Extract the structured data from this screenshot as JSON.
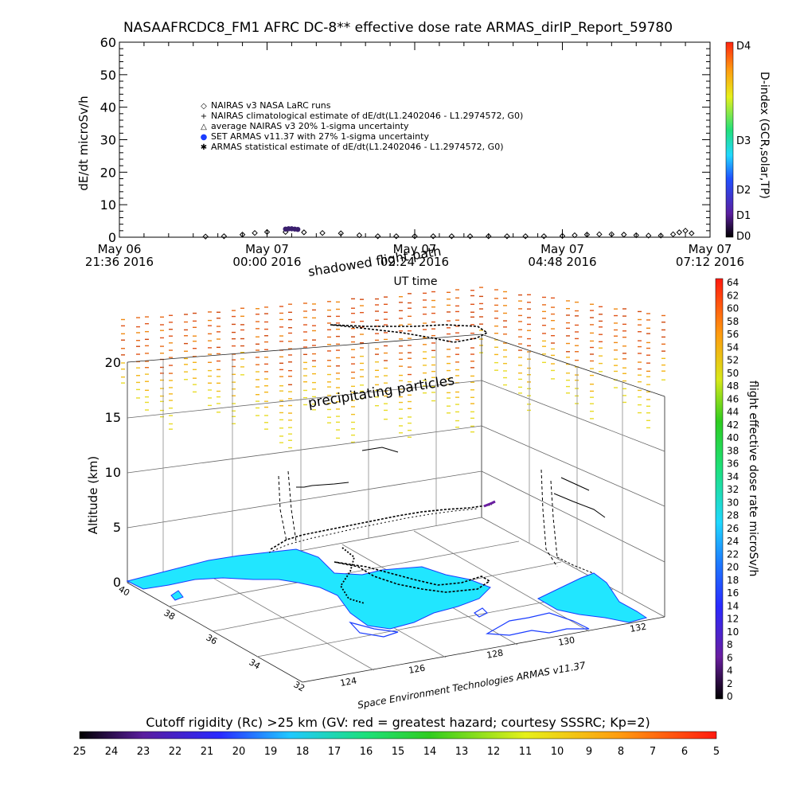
{
  "chart_data": [
    {
      "type": "scatter",
      "title": "NASAAFRCDC8_FM1 AFRC DC-8** effective dose rate ARMAS_dirIP_Report_59780",
      "ylabel": "dE/dt microSv/h",
      "xlabel": "UT time",
      "ylim": [
        0,
        60
      ],
      "yticks": [
        "0",
        "10",
        "20",
        "30",
        "40",
        "50",
        "60"
      ],
      "xticks": [
        {
          "l1": "May 06",
          "l2": "21:36 2016"
        },
        {
          "l1": "May 07",
          "l2": "00:00 2016"
        },
        {
          "l1": "May 07",
          "l2": "02:24 2016"
        },
        {
          "l1": "May 07",
          "l2": "04:48 2016"
        },
        {
          "l1": "May 07",
          "l2": "07:12 2016"
        }
      ],
      "x_hours": [
        -2.4,
        0,
        2.4,
        4.8,
        7.2
      ],
      "legend": [
        {
          "symbol": "◇",
          "label": "NAIRAS v3 NASA LaRC runs"
        },
        {
          "symbol": "+",
          "label": "NAIRAS climatological estimate of dE/dt(L1.2402046 - L1.2974572, G0)"
        },
        {
          "symbol": "△",
          "label": "average NAIRAS v3 20% 1-sigma uncertainty"
        },
        {
          "symbol": "●",
          "label": "SET ARMAS v11.37 with 27% 1-sigma uncertainty"
        },
        {
          "symbol": "✱",
          "label": "ARMAS statistical estimate of dE/dt(L1.2402046 - L1.2974572, G0)"
        }
      ],
      "legend_placement": "upper-left",
      "series": [
        {
          "marker": "diamond",
          "color": "#000000",
          "x": [
            -1.0,
            -0.7,
            -0.4,
            -0.2,
            0.0,
            0.3,
            0.6,
            0.9,
            1.2,
            1.5,
            1.8,
            2.1,
            2.4,
            2.7,
            3.0,
            3.3,
            3.6,
            3.9,
            4.2,
            4.5,
            4.8,
            5.0,
            5.2,
            5.4,
            5.6,
            5.8,
            6.0,
            6.2,
            6.4,
            6.6,
            6.7,
            6.8,
            6.9
          ],
          "y": [
            0.2,
            0.3,
            0.8,
            1.3,
            1.6,
            1.6,
            1.5,
            1.3,
            1.2,
            0.6,
            0.3,
            0.3,
            0.3,
            0.3,
            0.3,
            0.3,
            0.3,
            0.3,
            0.3,
            0.3,
            0.4,
            0.6,
            0.8,
            0.9,
            0.9,
            0.8,
            0.6,
            0.5,
            0.5,
            0.9,
            1.5,
            2.0,
            1.2
          ]
        },
        {
          "marker": "filled-circle",
          "color": "#3a1f6e",
          "x": [
            0.3,
            0.35,
            0.4,
            0.45,
            0.5
          ],
          "y": [
            2.5,
            2.6,
            2.6,
            2.5,
            2.4
          ]
        }
      ],
      "colorbar": {
        "label": "D-index (GCR,solar,TP)",
        "ticks": [
          "D4",
          "D3",
          "D2",
          "D1",
          "D0"
        ]
      }
    },
    {
      "type": "scatter",
      "subtype": "3d-trajectory",
      "zlabel": "Altitude (km)",
      "zticks": [
        "0",
        "5",
        "10",
        "15",
        "20"
      ],
      "zlim": [
        0,
        20
      ],
      "latitude_ticks": [
        "40",
        "38",
        "36",
        "34",
        "32"
      ],
      "longitude_ticks": [
        "124",
        "126",
        "128",
        "130",
        "132"
      ],
      "annotations": [
        "shadowed flight path",
        "precipitating particles"
      ],
      "credit": "Space Environment Technologies ARMAS v11.37",
      "colorbar": {
        "label": "flight effective dose rate microSv/h",
        "ticks": [
          "0",
          "2",
          "4",
          "6",
          "8",
          "10",
          "12",
          "14",
          "16",
          "18",
          "20",
          "22",
          "24",
          "26",
          "28",
          "30",
          "32",
          "34",
          "36",
          "38",
          "40",
          "42",
          "44",
          "46",
          "48",
          "50",
          "52",
          "54",
          "56",
          "58",
          "60",
          "62",
          "64"
        ]
      }
    },
    {
      "type": "heatmap",
      "subtype": "horizontal-colorbar",
      "title": "Cutoff rigidity (Rc) >25 km (GV: red = greatest hazard; courtesy SSSRC; Kp=2)",
      "ticks": [
        "25",
        "24",
        "23",
        "22",
        "21",
        "20",
        "19",
        "18",
        "17",
        "16",
        "15",
        "14",
        "13",
        "12",
        "11",
        "10",
        "9",
        "8",
        "7",
        "6",
        "5"
      ]
    }
  ],
  "colors": {
    "land": "#21e6ff",
    "coast": "#1a3cff",
    "path": "#000000"
  }
}
